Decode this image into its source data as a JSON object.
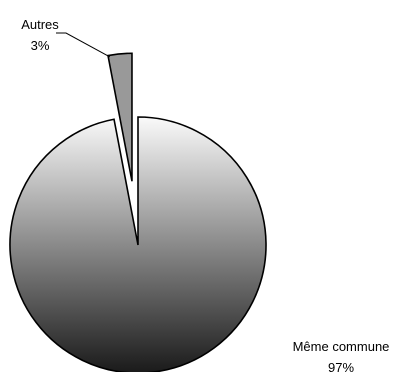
{
  "chart_data": {
    "type": "pie",
    "title": "",
    "categories": [
      "Autres",
      "Même commune"
    ],
    "values": [
      3,
      97
    ],
    "labels": [
      {
        "name": "Autres",
        "value": "3%"
      },
      {
        "name": "Même commune",
        "value": "97%"
      }
    ],
    "exploded": true,
    "legend": "none",
    "colors": {
      "slice_autres": "#999999",
      "slice_meme_commune_light": "#fafafa",
      "slice_meme_commune_dark": "#1a1a1a",
      "outline": "#000000"
    }
  }
}
